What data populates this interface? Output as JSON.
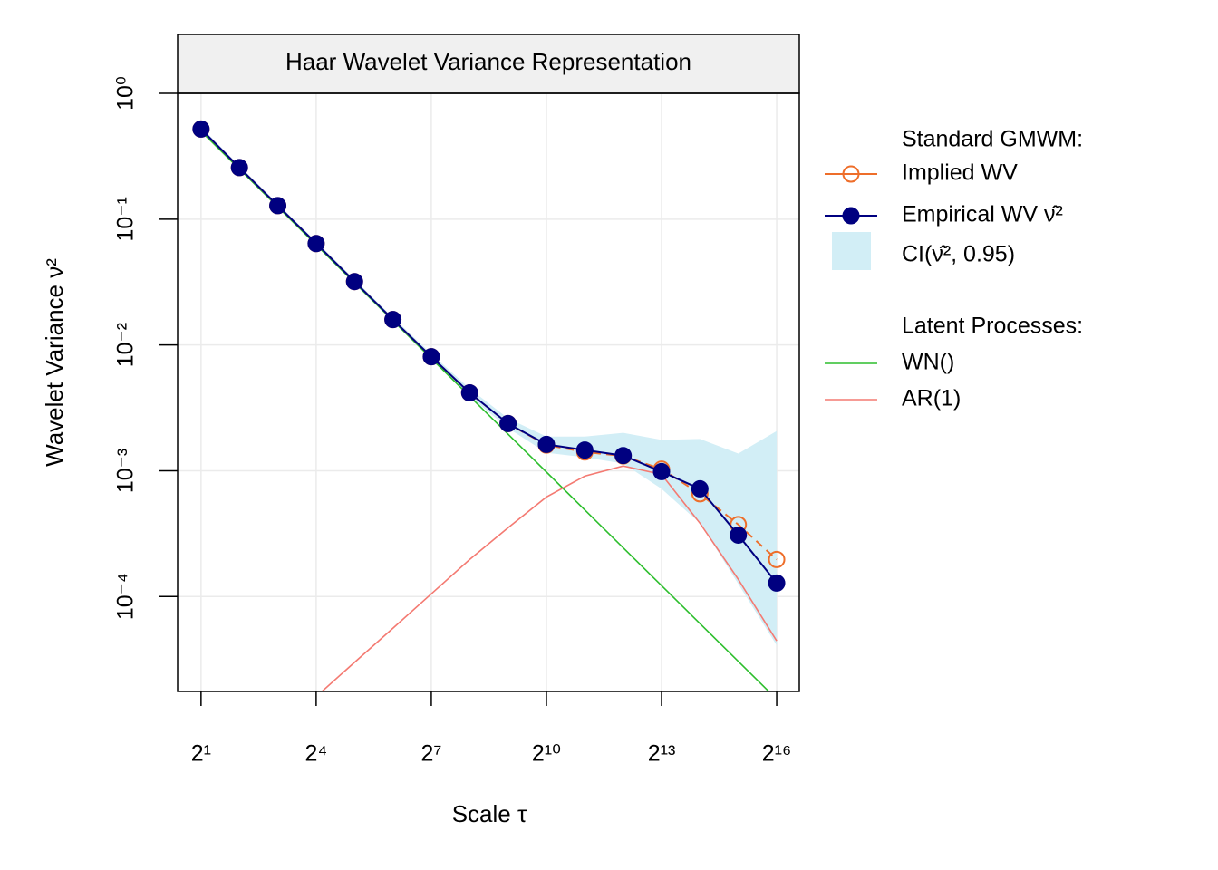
{
  "chart_data": {
    "type": "line",
    "title": "Haar Wavelet Variance Representation",
    "x_label": "Scale τ",
    "y_label": "Wavelet Variance ν²",
    "x_log_base": 2,
    "y_log_base": 10,
    "grid": true,
    "x": [
      2,
      4,
      8,
      16,
      32,
      64,
      128,
      256,
      512,
      1024,
      2048,
      4096,
      8192,
      16384,
      32768,
      65536
    ],
    "xlim": [
      1.31,
      98600
    ],
    "ylim": [
      1.76e-05,
      1
    ],
    "xticks": [
      {
        "value": 2,
        "label": "2¹"
      },
      {
        "value": 16,
        "label": "2⁴"
      },
      {
        "value": 128,
        "label": "2⁷"
      },
      {
        "value": 1024,
        "label": "2¹⁰"
      },
      {
        "value": 8192,
        "label": "2¹³"
      },
      {
        "value": 65536,
        "label": "2¹⁶"
      }
    ],
    "yticks": [
      {
        "value": 1,
        "label": "10⁰"
      },
      {
        "value": 0.1,
        "label": "10⁻¹"
      },
      {
        "value": 0.01,
        "label": "10⁻²"
      },
      {
        "value": 0.001,
        "label": "10⁻³"
      },
      {
        "value": 0.0001,
        "label": "10⁻⁴"
      }
    ],
    "legend_headers": [
      "Standard GMWM:",
      "Latent Processes:"
    ],
    "band": {
      "name": "CI(ν̂², 0.95)",
      "color": "#D2EEF6",
      "lower": [
        0.5,
        0.248,
        0.123,
        0.0615,
        0.0306,
        0.0152,
        0.0077,
        0.0039,
        0.00218,
        0.00139,
        0.00128,
        0.00114,
        0.000718,
        0.000383,
        0.000126,
        4.09e-05
      ],
      "upper": [
        0.54,
        0.266,
        0.133,
        0.0665,
        0.0332,
        0.0166,
        0.0085,
        0.0045,
        0.00261,
        0.00187,
        0.00187,
        0.002,
        0.00176,
        0.00179,
        0.00137,
        0.00207
      ]
    },
    "series": [
      {
        "name": "Implied WV",
        "color": "#EE6E2A",
        "marker": "open-circle",
        "dashed": true,
        "values": [
          0.52,
          0.257,
          0.128,
          0.064,
          0.0319,
          0.0159,
          0.00806,
          0.00416,
          0.00237,
          0.0016,
          0.00141,
          0.00131,
          0.00103,
          0.000656,
          0.000373,
          0.000197
        ]
      },
      {
        "name": "Empirical WV ν̂²",
        "color": "#000080",
        "marker": "filled-circle",
        "dashed": false,
        "values": [
          0.52,
          0.257,
          0.128,
          0.064,
          0.0319,
          0.0159,
          0.00806,
          0.00416,
          0.00237,
          0.00162,
          0.00146,
          0.00132,
          0.000984,
          0.000718,
          0.000308,
          0.000128
        ]
      },
      {
        "name": "WN()",
        "color": "#2DBE2D",
        "marker": "none",
        "dashed": false,
        "values": [
          0.5,
          0.25,
          0.125,
          0.0625,
          0.03125,
          0.015625,
          0.0078125,
          0.00390625,
          0.001953125,
          0.0009765625,
          0.00048828125,
          0.000244140625,
          0.0001220703125,
          6.103515625e-05,
          3.0517578125e-05,
          1.52587890625e-05
        ]
      },
      {
        "name": "AR(1)",
        "color": "#F47A72",
        "marker": "none",
        "dashed": false,
        "values": [
          2.5e-06,
          4.6e-06,
          8.6e-06,
          1.6e-05,
          3e-05,
          5.6e-05,
          0.000105,
          0.000197,
          0.000352,
          0.000618,
          0.000906,
          0.00109,
          0.000935,
          0.000383,
          0.000137,
          4.44e-05
        ]
      }
    ]
  }
}
